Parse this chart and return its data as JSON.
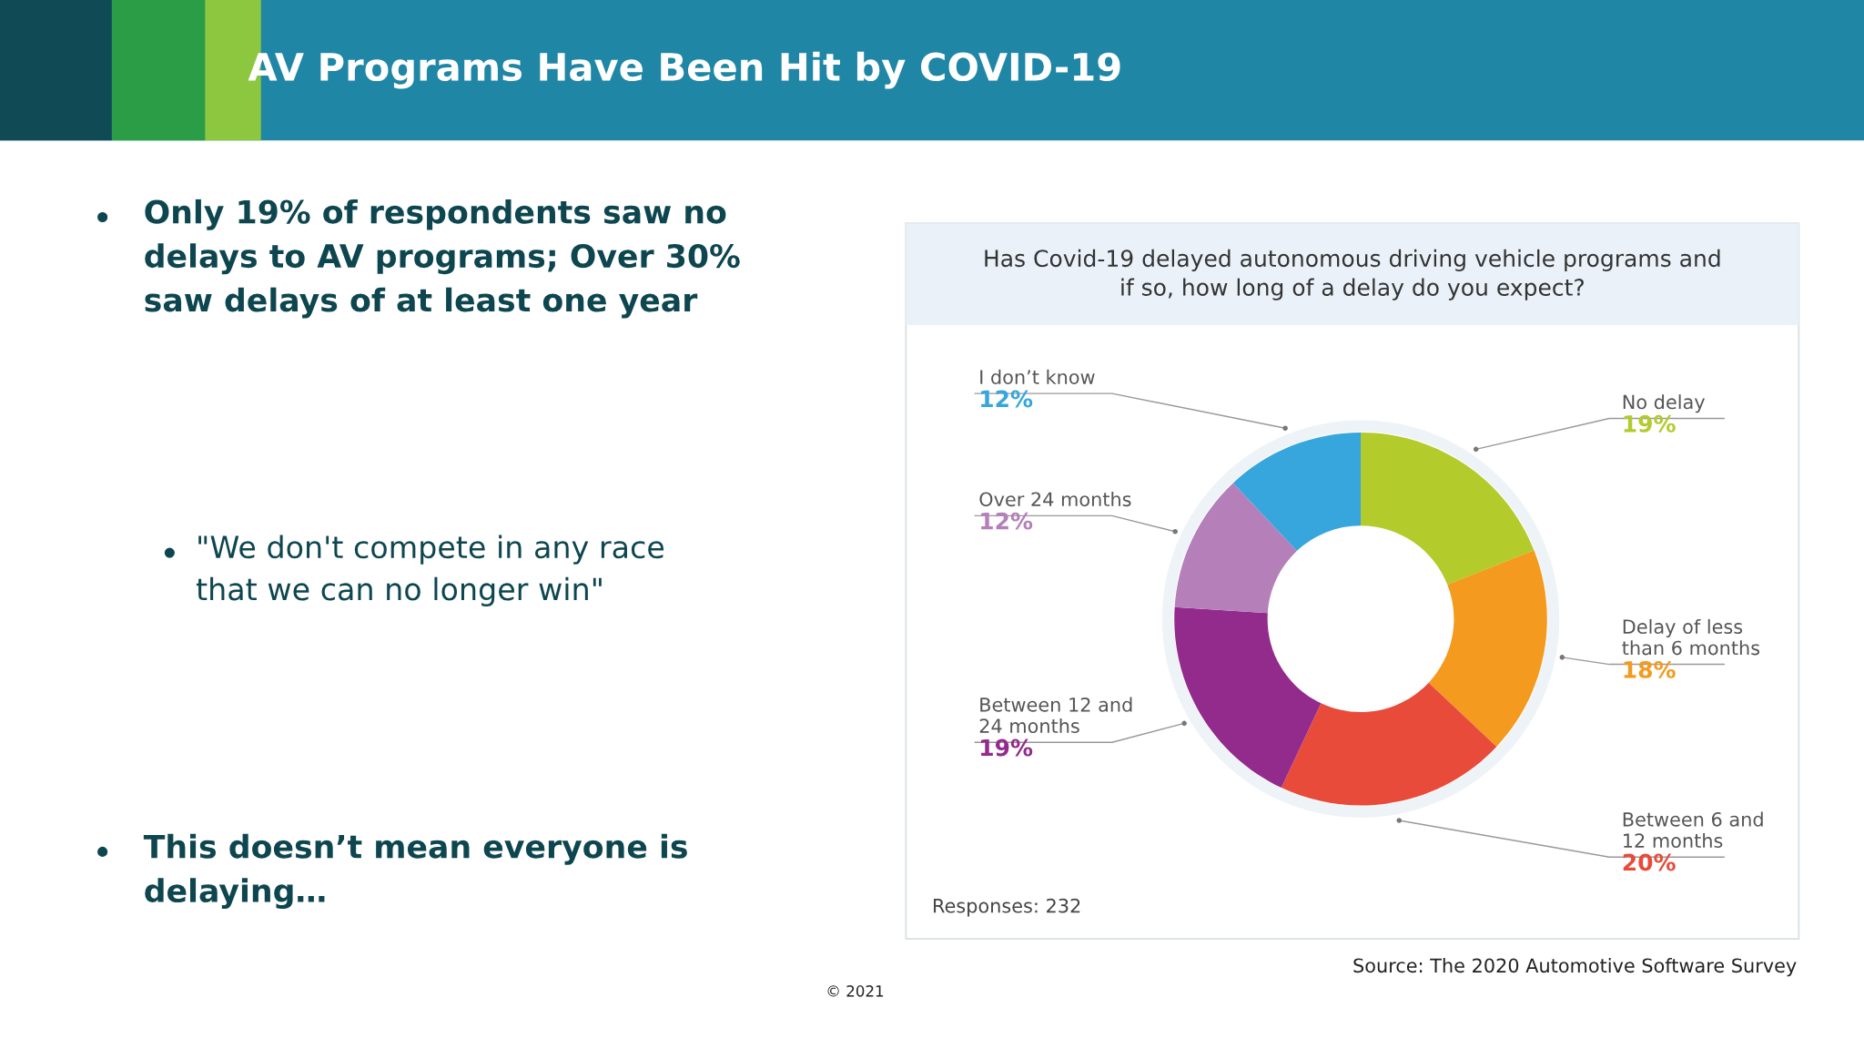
{
  "chart_data": {
    "type": "donut",
    "title": "AV Programs Have Been Hit by COVID-19",
    "subtitle": "Has Covid-19 delayed autonomous driving vehicle programs and if so, how long of a delay do you expect?",
    "categories": [
      "No delay",
      "Delay of less than 6 months",
      "Between 6 and 12 months",
      "Between 12 and 24 months",
      "Over 24 months",
      "I don’t know"
    ],
    "values": [
      19,
      18,
      20,
      19,
      12,
      12
    ],
    "value_labels": [
      "19%",
      "18%",
      "20%",
      "19%",
      "12%",
      "12%"
    ],
    "colors": [
      "#b3cb2b",
      "#f39a1f",
      "#e84b3a",
      "#932b8d",
      "#b57fba",
      "#37a6dd"
    ],
    "annotations": [
      "Only 19% of respondents saw no delays to AV programs; Over 30% saw delays of at least one year",
      "\"We don't compete in any race that we can no longer win\"",
      "This doesn’t mean everyone is delaying…",
      "Responses: 232",
      "Source: The 2020 Automotive Software Survey",
      "© 2021"
    ]
  }
}
